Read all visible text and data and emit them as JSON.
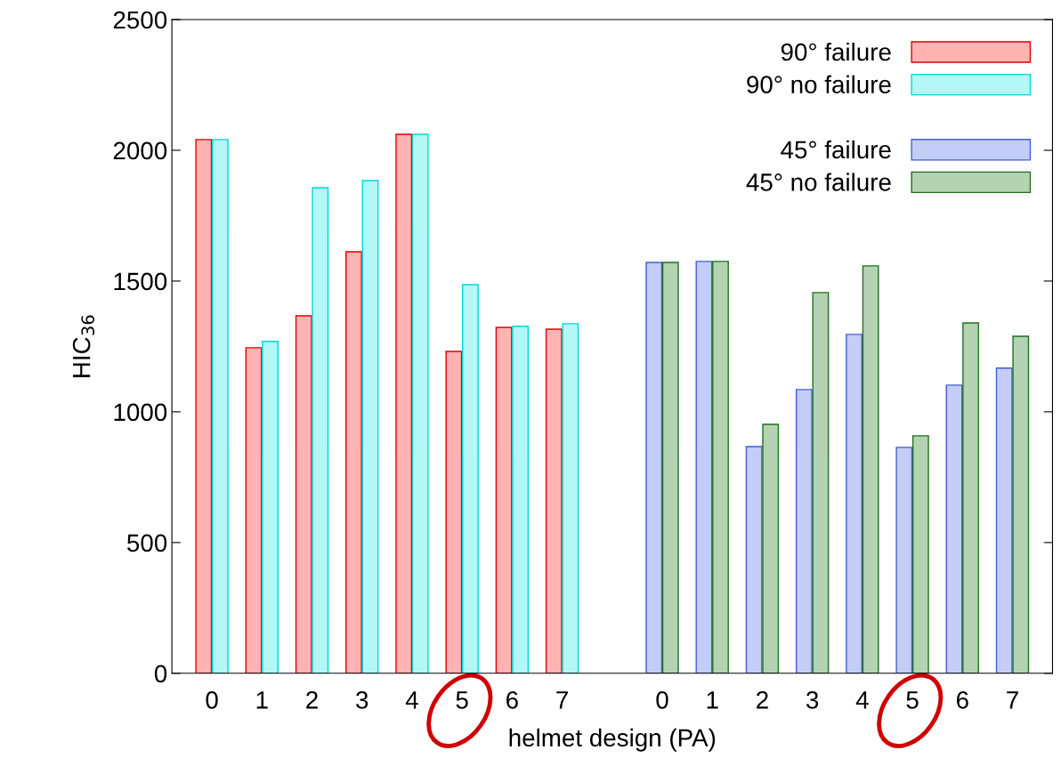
{
  "chart_data": {
    "type": "bar",
    "xlabel": "helmet design (PA)",
    "ylabel": "HIC$_{36}$",
    "categories": [
      "0",
      "1",
      "2",
      "3",
      "4",
      "5",
      "6",
      "7",
      null,
      "0",
      "1",
      "2",
      "3",
      "4",
      "5",
      "6",
      "7"
    ],
    "series": [
      {
        "name": "90° failure",
        "color": "#ffb3b3",
        "values": [
          2041,
          1245,
          1367,
          1612,
          2061,
          1231,
          1323,
          1316,
          null,
          null,
          null,
          null,
          null,
          null,
          null,
          null,
          null
        ]
      },
      {
        "name": "90° no failure",
        "color": "#b3f7f7",
        "values": [
          2041,
          1269,
          1857,
          1884,
          2061,
          1486,
          1327,
          1337,
          null,
          null,
          null,
          null,
          null,
          null,
          null,
          null,
          null
        ]
      },
      {
        "name": "45° failure",
        "color": "#c3cdf7",
        "values": [
          null,
          null,
          null,
          null,
          null,
          null,
          null,
          null,
          null,
          1571,
          1575,
          867,
          1085,
          1296,
          864,
          1102,
          1167
        ]
      },
      {
        "name": "45° no failure",
        "color": "#b3d3b3",
        "values": [
          null,
          null,
          null,
          null,
          null,
          null,
          null,
          null,
          null,
          1571,
          1575,
          952,
          1456,
          1558,
          908,
          1340,
          1289
        ]
      }
    ],
    "ylim": [
      0,
      2500
    ],
    "yticks": [
      0,
      500,
      1000,
      1500,
      2000,
      2500
    ],
    "grid": false,
    "legend": "top right"
  }
}
